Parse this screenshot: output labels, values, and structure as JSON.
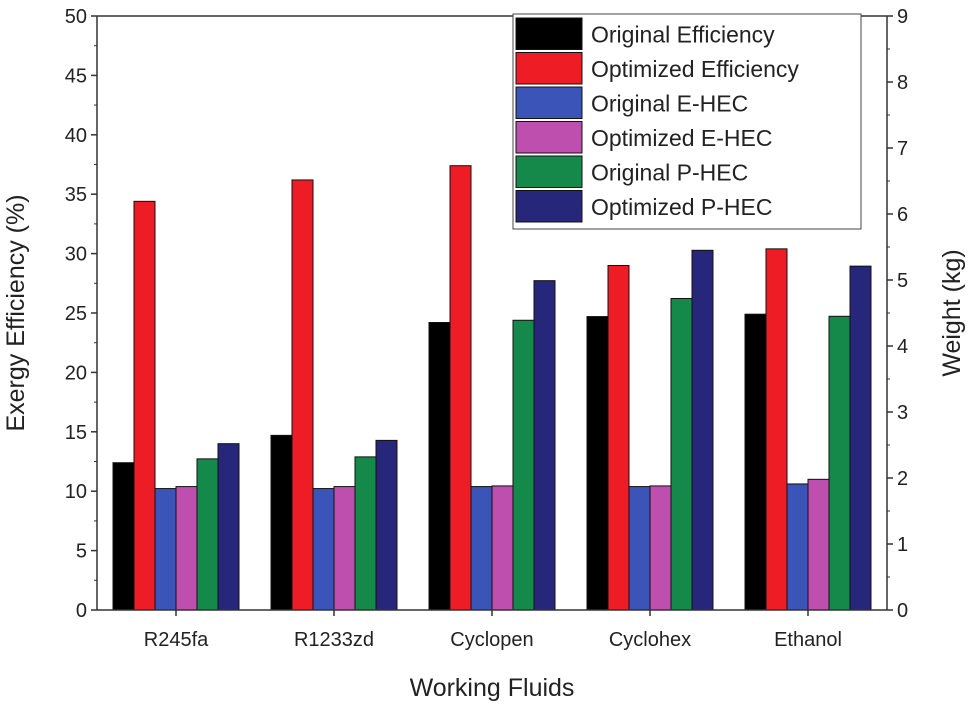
{
  "chart_data": {
    "type": "bar",
    "title": "",
    "xlabel": "Working Fluids",
    "ylabel": "Exergy Efficiency (%)",
    "y2label": "Weight (kg)",
    "ylim": [
      0,
      50
    ],
    "y2lim": [
      0,
      9
    ],
    "yticks": [
      "0",
      "5",
      "10",
      "15",
      "20",
      "25",
      "30",
      "35",
      "40",
      "45",
      "50"
    ],
    "y2ticks": [
      "0",
      "1",
      "2",
      "3",
      "4",
      "5",
      "6",
      "7",
      "8",
      "9"
    ],
    "grid": false,
    "legend_position": "top-right",
    "categories": [
      "R245fa",
      "R1233zd",
      "Cyclopen",
      "Cyclohex",
      "Ethanol"
    ],
    "series": [
      {
        "name": "Original Efficiency",
        "axis": "left",
        "color": "#000000",
        "values": [
          12.4,
          14.7,
          24.2,
          24.7,
          24.9
        ]
      },
      {
        "name": "Optimized Efficiency",
        "axis": "left",
        "color": "#ee1c25",
        "values": [
          34.4,
          36.2,
          37.4,
          29.0,
          30.4
        ]
      },
      {
        "name": "Original E-HEC",
        "axis": "right",
        "color": "#3a54b8",
        "values": [
          1.84,
          1.84,
          1.87,
          1.87,
          1.91
        ]
      },
      {
        "name": "Optimized E-HEC",
        "axis": "right",
        "color": "#bf4fae",
        "values": [
          1.87,
          1.87,
          1.88,
          1.88,
          1.98
        ]
      },
      {
        "name": "Original P-HEC",
        "axis": "right",
        "color": "#14894a",
        "values": [
          2.29,
          2.32,
          4.39,
          4.72,
          4.45
        ]
      },
      {
        "name": "Optimized P-HEC",
        "axis": "right",
        "color": "#26277a",
        "values": [
          2.52,
          2.57,
          4.99,
          5.45,
          5.21
        ]
      }
    ]
  }
}
